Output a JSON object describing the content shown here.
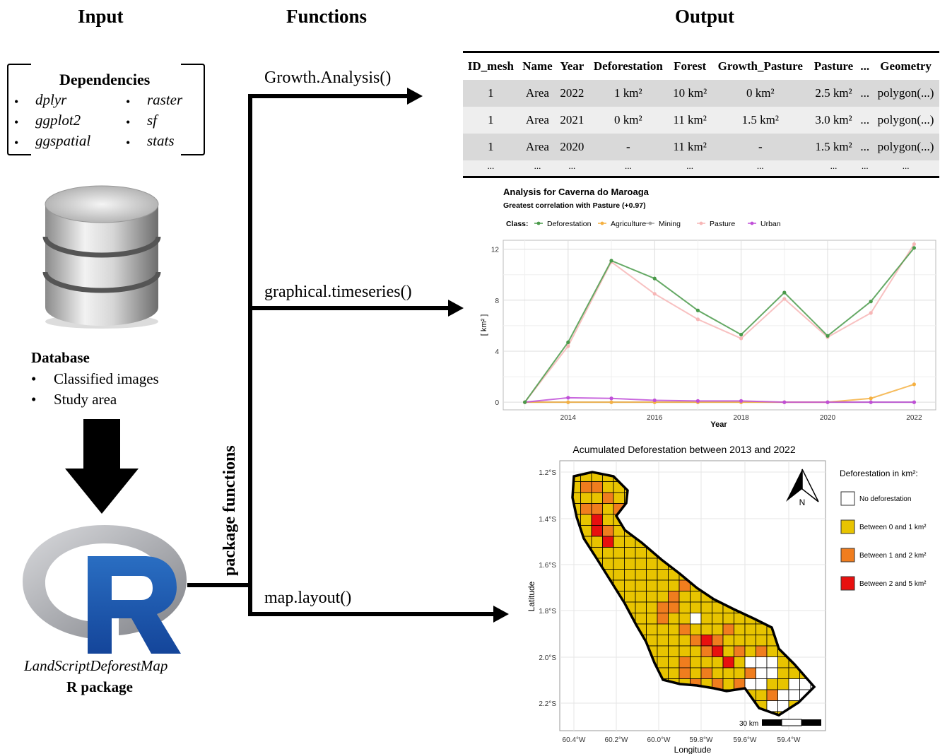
{
  "headers": {
    "input": "Input",
    "functions": "Functions",
    "output": "Output"
  },
  "dependencies": {
    "title": "Dependencies",
    "items": [
      "dplyr",
      "raster",
      "ggplot2",
      "sf",
      "ggspatial",
      "stats"
    ]
  },
  "database": {
    "title": "Database",
    "items": [
      "Classified images",
      "Study area"
    ]
  },
  "package": {
    "name": "LandScriptDeforestMap",
    "subtitle": "R package",
    "logo_letter": "R"
  },
  "side_label": "package functions",
  "functions": [
    "Growth.Analysis()",
    "graphical.timeseries()",
    "map.layout()"
  ],
  "table": {
    "columns": [
      "ID_mesh",
      "Name",
      "Year",
      "Deforestation",
      "Forest",
      "Growth_Pasture",
      "Pasture",
      "...",
      "Geometry"
    ],
    "rows": [
      [
        "1",
        "Area",
        "2022",
        "1 km²",
        "10 km²",
        "0 km²",
        "2.5 km²",
        "...",
        "polygon(...)"
      ],
      [
        "1",
        "Area",
        "2021",
        "0 km²",
        "11 km²",
        "1.5 km²",
        "3.0 km²",
        "...",
        "polygon(...)"
      ],
      [
        "1",
        "Area",
        "2020",
        "-",
        "11 km²",
        "-",
        "1.5 km²",
        "...",
        "polygon(...)"
      ],
      [
        "...",
        "...",
        "...",
        "...",
        "...",
        "...",
        "...",
        "...",
        "..."
      ]
    ]
  },
  "chart_data": {
    "type": "line",
    "title": "Analysis for Caverna do Maroaga",
    "subtitle": "Greatest correlation with Pasture (+0.97)",
    "legend_title": "Class:",
    "legend_position": "top",
    "xlabel": "Year",
    "ylabel": "[ km² ]",
    "x": [
      2013,
      2014,
      2015,
      2016,
      2017,
      2018,
      2019,
      2020,
      2021,
      2022
    ],
    "xticks": [
      2014,
      2016,
      2018,
      2020,
      2022
    ],
    "yticks": [
      0,
      4,
      8,
      12
    ],
    "xlim": [
      2012.5,
      2022.5
    ],
    "ylim": [
      -0.6,
      12.7
    ],
    "grid": true,
    "series": [
      {
        "name": "Deforestation",
        "color": "#4a9a4a",
        "values": [
          0,
          4.7,
          11.1,
          9.7,
          7.2,
          5.3,
          8.6,
          5.2,
          7.9,
          12.1
        ]
      },
      {
        "name": "Agriculture",
        "color": "#f5b041",
        "values": [
          0,
          0.0,
          0.0,
          0.0,
          0.0,
          0.0,
          0.0,
          0.0,
          0.3,
          1.4
        ]
      },
      {
        "name": "Mining",
        "color": "#a0a0a0",
        "values": [
          0,
          0,
          0,
          0,
          0,
          0,
          0,
          0,
          0,
          0
        ]
      },
      {
        "name": "Pasture",
        "color": "#f7b6b6",
        "values": [
          0,
          4.4,
          11.0,
          8.5,
          6.5,
          5.0,
          8.1,
          5.1,
          7.0,
          12.4
        ]
      },
      {
        "name": "Urban",
        "color": "#c04fd8",
        "values": [
          0,
          0.35,
          0.3,
          0.15,
          0.1,
          0.1,
          0.0,
          0.0,
          0.0,
          0.0
        ]
      }
    ]
  },
  "map": {
    "title": "Acumulated Deforestation between 2013 and 2022",
    "ylabel": "Latitude",
    "xlabel": "Longitude",
    "lat_ticks": [
      "1.2°S",
      "1.4°S",
      "1.6°S",
      "1.8°S",
      "2.0°S",
      "2.2°S"
    ],
    "lon_ticks": [
      "60.4°W",
      "60.2°W",
      "60.0°W",
      "59.8°W",
      "59.6°W",
      "59.4°W"
    ],
    "scale_label": "30 km",
    "north_label": "N",
    "legend_title": "Deforestation  in  km²:",
    "legend": [
      {
        "label": "No deforestation",
        "color": "#ffffff"
      },
      {
        "label": "Between  0  and  1 km²",
        "color": "#e8c400"
      },
      {
        "label": "Between  1  and  2 km²",
        "color": "#f07d1e"
      },
      {
        "label": "Between  2  and  5 km²",
        "color": "#e8100f"
      }
    ]
  }
}
